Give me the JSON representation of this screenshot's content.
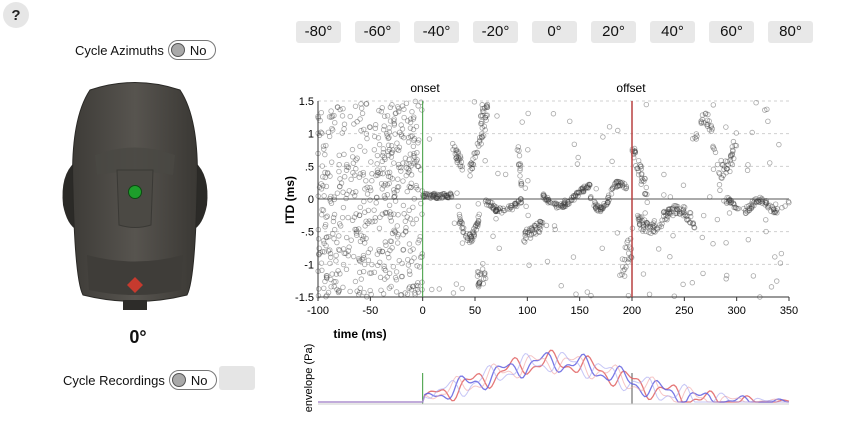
{
  "help": {
    "label": "?"
  },
  "cycle_azimuths": {
    "label": "Cycle Azimuths",
    "value": "No"
  },
  "cycle_recordings": {
    "label": "Cycle Recordings",
    "value": "No"
  },
  "head": {
    "angle": "0°",
    "indicator_color": "#1d9e2b"
  },
  "azimuth_buttons": [
    "-80°",
    "-60°",
    "-40°",
    "-20°",
    "0°",
    "20°",
    "40°",
    "60°",
    "80°"
  ],
  "chart_data": [
    {
      "type": "scatter",
      "xlabel": "time (ms)",
      "ylabel": "ITD (ms)",
      "xlim": [
        -100,
        350
      ],
      "ylim": [
        -1.5,
        1.5
      ],
      "x_ticks": [
        "-100",
        "-50",
        "0",
        "50",
        "100",
        "150",
        "200",
        "250",
        "300",
        "350"
      ],
      "y_ticks": [
        "1.5",
        "1",
        ".5",
        "0",
        "-.5",
        "-1",
        "-1.5"
      ],
      "annotations": [
        {
          "text": "onset",
          "x": 0,
          "color": "#3a9a3a"
        },
        {
          "text": "offset",
          "x": 200,
          "color": "#b84040"
        }
      ],
      "grid": "dashed horizontal",
      "points_approx": "dense noisy cloud from -100 to 0 ms; structured ITD tracks between 0 and 350 ms"
    },
    {
      "type": "line",
      "ylabel": "envelope (Pa)",
      "xlim": [
        -100,
        350
      ],
      "series_colors": [
        "#e06060",
        "#6060e0",
        "#f0a0a0",
        "#a0a0f0"
      ],
      "series": [
        {
          "values_approx": "flat near zero before onset, peaks around 115–135 ms, decays to near zero by 350 ms"
        }
      ]
    }
  ]
}
